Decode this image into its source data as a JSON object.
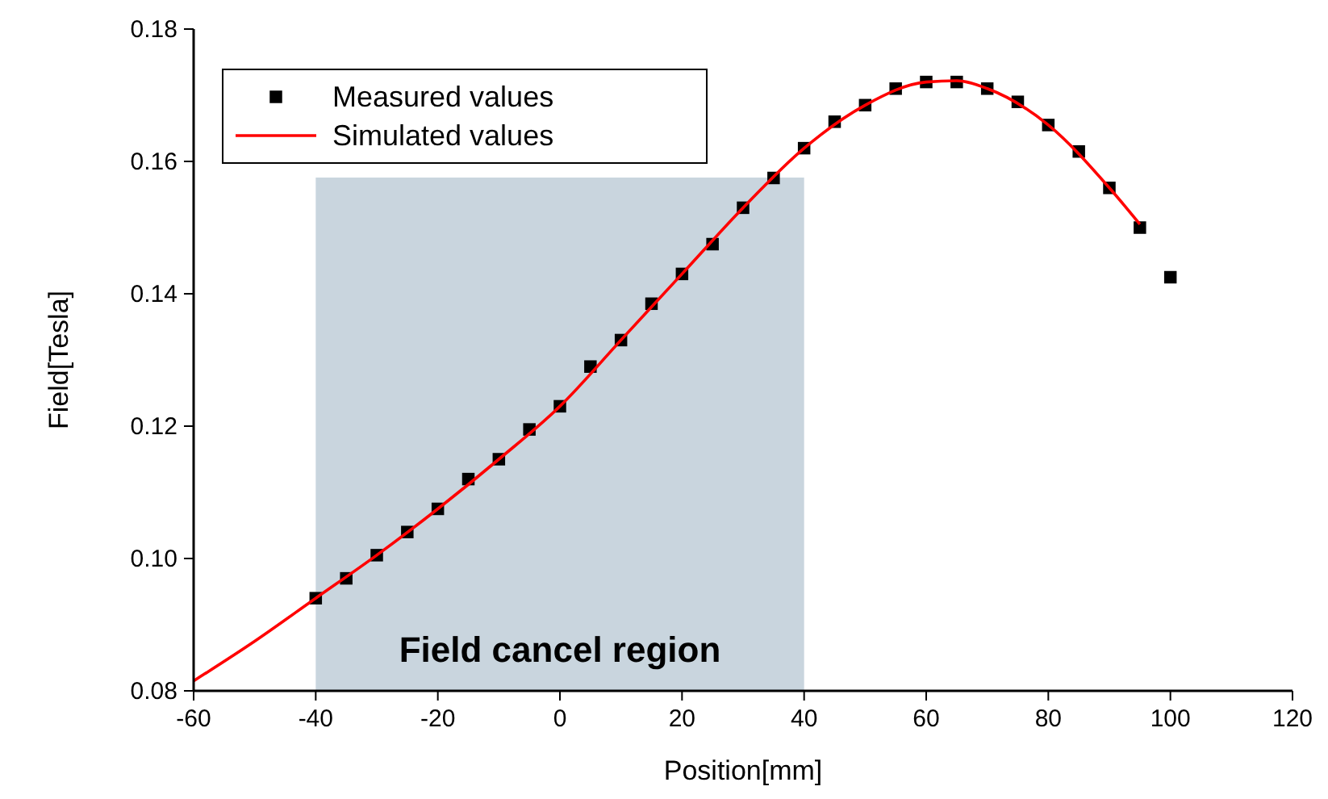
{
  "chart_data": {
    "type": "scatter",
    "xlabel": "Position[mm]",
    "ylabel": "Field[Tesla]",
    "xlim": [
      -60,
      120
    ],
    "xticks": [
      -60,
      -40,
      -20,
      0,
      20,
      40,
      60,
      80,
      100,
      120
    ],
    "ylim": [
      0.08,
      0.18
    ],
    "yticks": [
      {
        "value": 0.08,
        "label": "0.08"
      },
      {
        "value": 0.1,
        "label": "0.10"
      },
      {
        "value": 0.12,
        "label": "0.12"
      },
      {
        "value": 0.14,
        "label": "0.14"
      },
      {
        "value": 0.16,
        "label": "0.16"
      },
      {
        "value": 0.18,
        "label": "0.18"
      }
    ],
    "legend": "top left",
    "grid": false,
    "bands": [
      {
        "axis": "x",
        "from": -40,
        "to": 40,
        "label": "Field cancel region",
        "color": "#c3d0da"
      }
    ],
    "series": [
      {
        "name": "Measured values",
        "marker": "square",
        "color": "#000000",
        "x": [
          -40,
          -35,
          -30,
          -25,
          -20,
          -15,
          -10,
          -5,
          0,
          5,
          10,
          15,
          20,
          25,
          30,
          35,
          40,
          45,
          50,
          55,
          60,
          65,
          70,
          75,
          80,
          85,
          90,
          95,
          100
        ],
        "values": [
          0.094,
          0.097,
          0.1005,
          0.104,
          0.1075,
          0.112,
          0.115,
          0.1195,
          0.123,
          0.129,
          0.133,
          0.1385,
          0.143,
          0.1475,
          0.153,
          0.1575,
          0.162,
          0.166,
          0.1685,
          0.171,
          0.172,
          0.172,
          0.171,
          0.169,
          0.1655,
          0.1615,
          0.156,
          0.15,
          0.1425
        ]
      },
      {
        "name": "Simulated values",
        "type": "line",
        "line_style": "solid",
        "marker": "none",
        "color": "#ff0000",
        "x": [
          -60,
          -50,
          -40,
          -30,
          -20,
          -10,
          0,
          10,
          20,
          30,
          40,
          50,
          60,
          65,
          70,
          80,
          90,
          95
        ],
        "values": [
          0.0815,
          0.0875,
          0.094,
          0.1005,
          0.1075,
          0.115,
          0.123,
          0.133,
          0.143,
          0.153,
          0.162,
          0.1685,
          0.172,
          0.1722,
          0.171,
          0.1655,
          0.156,
          0.1505
        ]
      }
    ]
  }
}
